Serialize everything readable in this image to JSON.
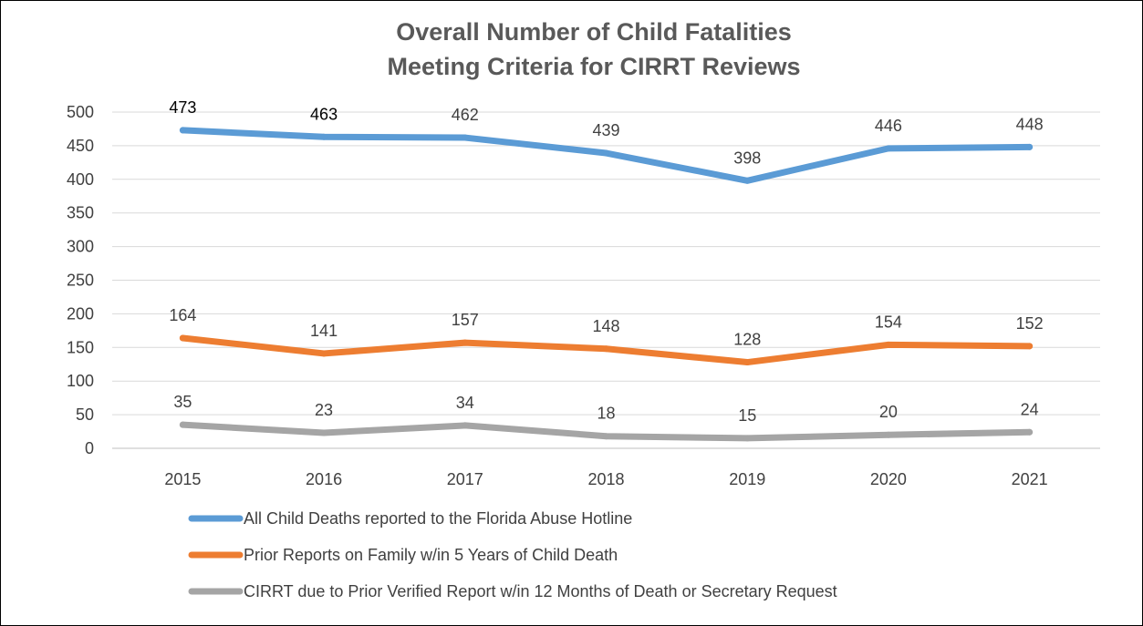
{
  "chart_data": {
    "type": "line",
    "title": [
      "Overall Number of Child Fatalities",
      "Meeting Criteria for CIRRT Reviews"
    ],
    "xlabel": "",
    "ylabel": "",
    "categories": [
      "2015",
      "2016",
      "2017",
      "2018",
      "2019",
      "2020",
      "2021"
    ],
    "ylim": [
      0,
      500
    ],
    "yticks": [
      0,
      50,
      100,
      150,
      200,
      250,
      300,
      350,
      400,
      450,
      500
    ],
    "grid": true,
    "legend_position": "bottom",
    "series": [
      {
        "name": "All Child Deaths reported to the Florida Abuse Hotline",
        "color": "#5B9BD5",
        "values": [
          473,
          463,
          462,
          439,
          398,
          446,
          448
        ],
        "labels": [
          "473",
          "463",
          "462",
          "439",
          "398",
          "446",
          "448"
        ]
      },
      {
        "name": "Prior Reports on Family w/in 5 Years of Child Death",
        "color": "#ED7D31",
        "values": [
          164,
          141,
          157,
          148,
          128,
          154,
          152
        ],
        "labels": [
          "164",
          "141",
          "157",
          "148",
          "128",
          "154",
          "152"
        ]
      },
      {
        "name": "CIRRT due to Prior Verified Report w/in 12 Months of Death or Secretary Request",
        "color": "#A5A5A5",
        "values": [
          35,
          23,
          34,
          18,
          15,
          20,
          24
        ],
        "labels": [
          "35",
          "23",
          "34",
          "18",
          "15",
          "20",
          "24"
        ]
      }
    ]
  }
}
